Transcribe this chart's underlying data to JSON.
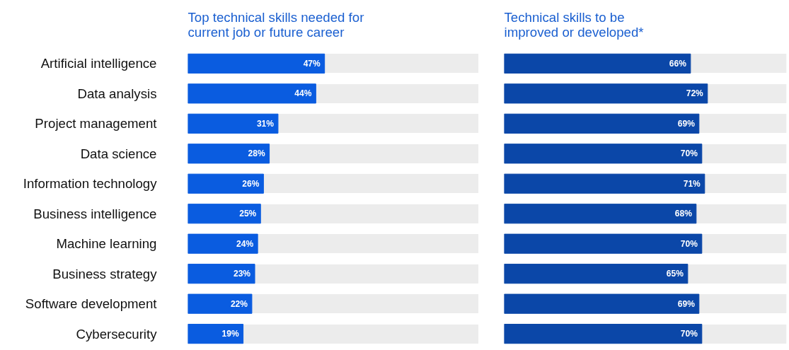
{
  "chart_data": [
    {
      "type": "bar",
      "orientation": "horizontal",
      "title": "Top technical skills needed for\ncurrent job or future career",
      "categories": [
        "Artificial intelligence",
        "Data analysis",
        "Project management",
        "Data science",
        "Information technology",
        "Business intelligence",
        "Machine learning",
        "Business strategy",
        "Software development",
        "Cybersecurity"
      ],
      "values": [
        47,
        44,
        31,
        28,
        26,
        25,
        24,
        23,
        22,
        19
      ],
      "value_labels": [
        "47%",
        "44%",
        "31%",
        "28%",
        "26%",
        "25%",
        "24%",
        "23%",
        "22%",
        "19%"
      ],
      "color": "#0a5ce0",
      "xlim": [
        0,
        100
      ],
      "grid": "y",
      "tick_labels": "y"
    },
    {
      "type": "bar",
      "orientation": "horizontal",
      "title": "Technical skills to be\nimproved or developed*",
      "values": [
        66,
        72,
        69,
        70,
        71,
        68,
        70,
        65,
        69,
        70
      ],
      "value_labels": [
        "66%",
        "72%",
        "69%",
        "70%",
        "71%",
        "68%",
        "70%",
        "65%",
        "69%",
        "70%"
      ],
      "color": "#0b47a8",
      "xlim": [
        0,
        100
      ],
      "grid": "y",
      "tick_labels": false
    }
  ]
}
